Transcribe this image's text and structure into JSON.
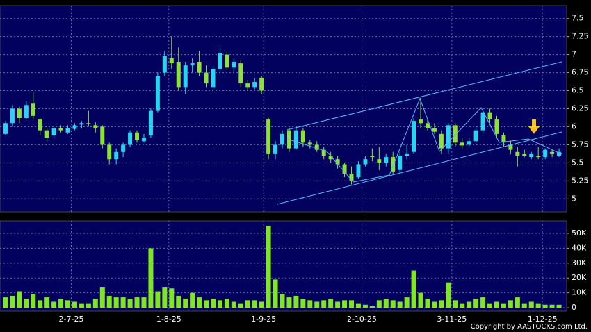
{
  "chart_data": [
    {
      "type": "candlestick",
      "open": [
        5.9,
        6.05,
        6.25,
        6.12,
        6.32,
        6.1,
        5.95,
        5.88,
        5.98,
        5.92,
        5.97,
        6.03,
        6.05,
        6.02,
        6.0,
        5.75,
        5.55,
        5.65,
        5.75,
        5.92,
        5.8,
        5.88,
        6.22,
        6.75,
        6.95,
        6.9,
        6.55,
        6.85,
        6.9,
        6.75,
        6.55,
        6.8,
        7.0,
        6.82,
        6.88,
        6.6,
        6.55,
        6.68,
        6.1,
        5.62,
        5.75,
        5.95,
        5.7,
        5.95,
        5.78,
        5.75,
        5.68,
        5.6,
        5.55,
        5.48,
        5.35,
        5.3,
        5.48,
        5.6,
        5.55,
        5.5,
        5.58,
        5.4,
        5.6,
        5.65,
        6.1,
        6.05,
        5.98,
        5.9,
        5.7,
        6.02,
        5.78,
        5.75,
        5.8,
        5.95,
        6.2,
        6.1,
        5.88,
        5.75,
        5.65,
        5.62,
        5.58,
        5.6,
        5.58,
        5.65,
        5.6
      ],
      "high": [
        6.08,
        6.3,
        6.28,
        6.35,
        6.48,
        6.12,
        5.98,
        6.0,
        6.02,
        6.02,
        6.05,
        6.08,
        6.22,
        6.06,
        6.02,
        5.78,
        5.7,
        5.78,
        5.95,
        5.95,
        5.9,
        6.25,
        6.75,
        7.05,
        7.25,
        7.1,
        6.9,
        6.95,
        7.05,
        6.85,
        6.85,
        7.1,
        7.05,
        6.95,
        6.92,
        6.65,
        6.68,
        6.7,
        6.12,
        5.8,
        5.95,
        5.98,
        6.0,
        5.98,
        5.82,
        5.8,
        5.72,
        5.65,
        5.6,
        5.5,
        5.45,
        5.52,
        5.6,
        5.7,
        5.72,
        5.62,
        5.65,
        5.65,
        5.75,
        6.12,
        6.4,
        6.1,
        6.05,
        5.95,
        6.05,
        6.05,
        5.85,
        5.85,
        6.0,
        6.25,
        6.25,
        6.15,
        5.92,
        5.8,
        5.72,
        5.68,
        5.65,
        5.72,
        5.7,
        5.68,
        5.7
      ],
      "low": [
        5.88,
        6.0,
        6.05,
        6.1,
        6.1,
        5.88,
        5.8,
        5.85,
        5.92,
        5.9,
        5.95,
        5.98,
        6.0,
        5.92,
        5.7,
        5.48,
        5.48,
        5.58,
        5.72,
        5.78,
        5.78,
        5.85,
        6.2,
        6.7,
        6.8,
        6.5,
        6.45,
        6.75,
        6.7,
        6.55,
        6.5,
        6.75,
        6.78,
        6.75,
        6.55,
        6.5,
        6.52,
        6.45,
        5.55,
        5.55,
        5.7,
        5.65,
        5.68,
        5.72,
        5.7,
        5.65,
        5.55,
        5.5,
        5.42,
        5.3,
        5.2,
        5.28,
        5.45,
        5.52,
        5.4,
        5.45,
        5.35,
        5.35,
        5.55,
        5.62,
        5.98,
        5.95,
        5.9,
        5.62,
        5.62,
        5.72,
        5.7,
        5.72,
        5.78,
        5.9,
        6.05,
        5.85,
        5.72,
        5.62,
        5.45,
        5.58,
        5.55,
        5.55,
        5.55,
        5.58,
        5.58
      ],
      "close": [
        6.05,
        6.25,
        6.12,
        6.3,
        6.15,
        5.95,
        5.85,
        5.98,
        5.95,
        5.98,
        6.02,
        6.05,
        6.04,
        5.98,
        5.75,
        5.55,
        5.65,
        5.75,
        5.92,
        5.82,
        5.85,
        6.22,
        6.7,
        6.98,
        6.88,
        6.55,
        6.85,
        6.88,
        6.75,
        6.6,
        6.8,
        7.02,
        6.82,
        6.9,
        6.6,
        6.55,
        6.62,
        6.5,
        5.62,
        5.75,
        5.9,
        5.7,
        5.95,
        5.78,
        5.75,
        5.68,
        5.6,
        5.55,
        5.48,
        5.35,
        5.25,
        5.48,
        5.55,
        5.58,
        5.5,
        5.58,
        5.38,
        5.6,
        5.62,
        6.08,
        6.05,
        5.98,
        5.93,
        5.7,
        6.02,
        5.78,
        5.74,
        5.8,
        5.95,
        6.2,
        6.1,
        5.9,
        5.78,
        5.68,
        5.6,
        5.6,
        5.62,
        5.58,
        5.68,
        5.62,
        5.65
      ],
      "up_color": "#2ad4f0",
      "down_color": "#8ee03a",
      "xlim": [
        -0.8,
        81.1
      ],
      "ylim": [
        4.82,
        7.68
      ],
      "yticks": [
        5,
        5.25,
        5.5,
        5.75,
        6,
        6.25,
        6.5,
        6.75,
        7,
        7.25,
        7.5
      ],
      "grid": true
    },
    {
      "type": "bar",
      "values": [
        7000,
        8000,
        11000,
        6000,
        9000,
        5000,
        7000,
        4000,
        6000,
        5000,
        4000,
        3000,
        3000,
        6000,
        14000,
        8000,
        7000,
        7000,
        6000,
        7000,
        7000,
        40000,
        11000,
        14000,
        13000,
        8000,
        6000,
        10000,
        7000,
        5000,
        6000,
        5000,
        6000,
        4000,
        3000,
        5000,
        5000,
        4000,
        55000,
        19000,
        9000,
        7000,
        8000,
        6000,
        5000,
        4000,
        5000,
        6000,
        4000,
        5000,
        5000,
        3000,
        2000,
        1000,
        5000,
        6000,
        5000,
        4000,
        7000,
        25000,
        10000,
        6000,
        4000,
        5000,
        17000,
        5000,
        3000,
        4000,
        6000,
        7000,
        3000,
        4000,
        3000,
        5000,
        7000,
        3000,
        4000,
        3000,
        2000,
        2000,
        2000
      ],
      "color": "#7fe627",
      "xlim": [
        -0.8,
        81.1
      ],
      "xticks": [
        {
          "value": 9.5,
          "label": "2-7-25"
        },
        {
          "value": 23.6,
          "label": "1-8-25"
        },
        {
          "value": 37.3,
          "label": "1-9-25"
        },
        {
          "value": 51.5,
          "label": "2-10-25"
        },
        {
          "value": 64.5,
          "label": "3-11-25"
        },
        {
          "value": 77.6,
          "label": "1-12-25"
        }
      ],
      "ylim": [
        -2300,
        58400
      ],
      "yticks": [
        0,
        {
          "value": 10000,
          "label": "10K"
        },
        {
          "value": 20000,
          "label": "20K"
        },
        {
          "value": 30000,
          "label": "30K"
        },
        {
          "value": 40000,
          "label": "40K"
        },
        {
          "value": 50000,
          "label": "50K"
        }
      ],
      "grid": true,
      "note": "Copyright by AASTOCKS.com Ltd."
    }
  ]
}
